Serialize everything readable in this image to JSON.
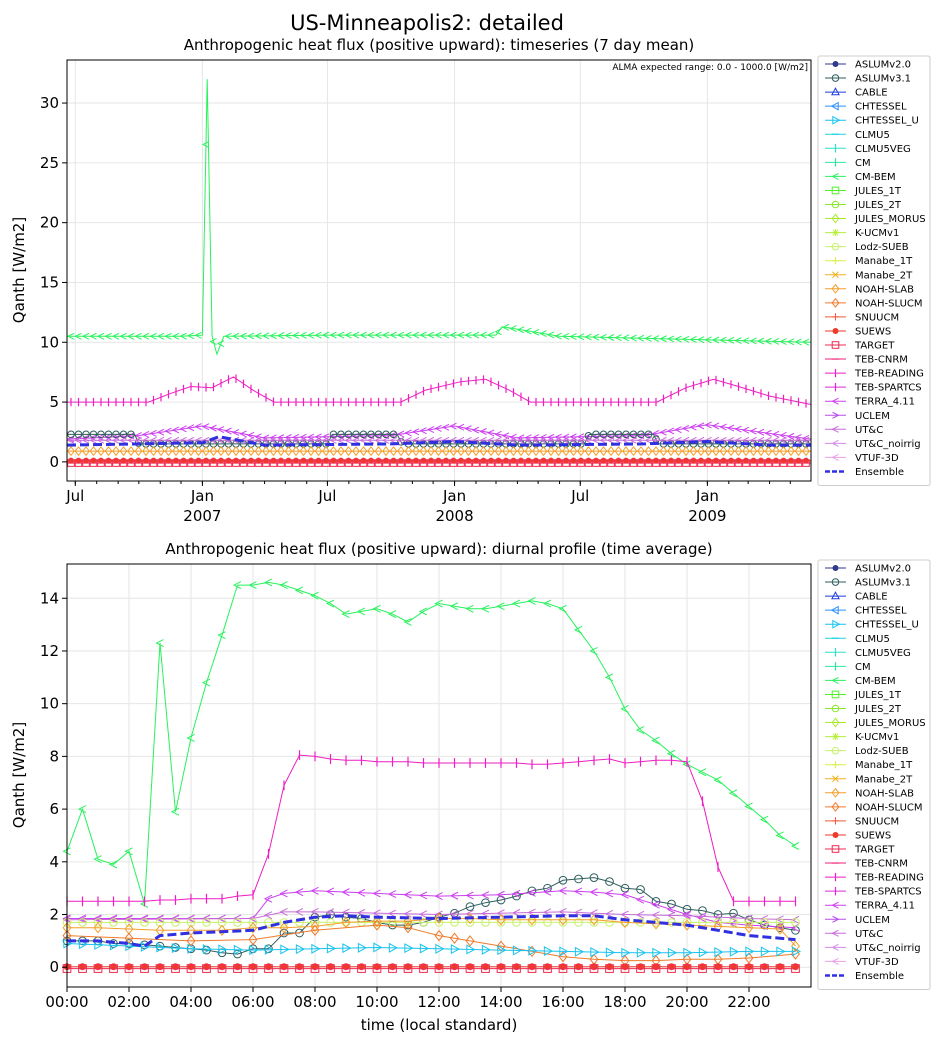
{
  "figure": {
    "title": "US-Minneapolis2: detailed"
  },
  "legend_labels": [
    "ASLUMv2.0",
    "ASLUMv3.1",
    "CABLE",
    "CHTESSEL",
    "CHTESSEL_U",
    "CLMU5",
    "CLMU5VEG",
    "CM",
    "CM-BEM",
    "JULES_1T",
    "JULES_2T",
    "JULES_MORUS",
    "K-UCMv1",
    "Lodz-SUEB",
    "Manabe_1T",
    "Manabe_2T",
    "NOAH-SLAB",
    "NOAH-SLUCM",
    "SNUUCM",
    "SUEWS",
    "TARGET",
    "TEB-CNRM",
    "TEB-READING",
    "TEB-SPARTCS",
    "TERRA_4.11",
    "UCLEM",
    "UT&C",
    "UT&C_noirrig",
    "VTUF-3D",
    "Ensemble"
  ],
  "series_colors": [
    "#2b3a8c",
    "#2f5e5e",
    "#1f3fdb",
    "#2f8fff",
    "#19c3ef",
    "#1fd2e6",
    "#2de0c8",
    "#2ee6a0",
    "#27f25c",
    "#54ee2a",
    "#87ea2a",
    "#aaea30",
    "#b6ef3c",
    "#c7f06a",
    "#dbef50",
    "#f0b020",
    "#f59e2a",
    "#f07a2a",
    "#f05a3a",
    "#ee3a2a",
    "#f02a50",
    "#f0207a",
    "#ee1ec2",
    "#dd28d6",
    "#cc3df0",
    "#b84ef0",
    "#c86ad8",
    "#d48ce8",
    "#e8a0e8",
    "#3030e0"
  ],
  "chart_data": [
    {
      "type": "line",
      "title": "Anthropogenic heat flux (positive upward): timeseries (7 day mean)",
      "ylabel": "Qanth [W/m2]",
      "xlabel": "",
      "annotation": "ALMA expected range: 0.0 - 1000.0 [W/m2]",
      "x_range": [
        "2006-06-19",
        "2009-05-31"
      ],
      "ylim": [
        -1.6,
        33.6
      ],
      "yticks": [
        0,
        5,
        10,
        15,
        20,
        25,
        30
      ],
      "xticks": [
        {
          "date": "2006-07-01",
          "label": "Jul",
          "sublabel": ""
        },
        {
          "date": "2007-01-01",
          "label": "Jan",
          "sublabel": "2007"
        },
        {
          "date": "2007-07-01",
          "label": "Jul",
          "sublabel": ""
        },
        {
          "date": "2008-01-01",
          "label": "Jan",
          "sublabel": "2008"
        },
        {
          "date": "2008-07-01",
          "label": "Jul",
          "sublabel": ""
        },
        {
          "date": "2009-01-01",
          "label": "Jan",
          "sublabel": "2009"
        }
      ],
      "grid": true,
      "legend_position": "right-outside",
      "series": [
        {
          "name": "CM-BEM",
          "x": [
            "2006-06-19",
            "2006-12-01",
            "2007-01-01",
            "2007-01-08",
            "2007-01-15",
            "2007-01-22",
            "2007-02-01",
            "2007-07-01",
            "2008-03-01",
            "2008-03-10",
            "2008-06-01",
            "2009-05-31"
          ],
          "y": [
            10.5,
            10.5,
            10.6,
            32.0,
            10.5,
            9.0,
            10.5,
            10.6,
            10.6,
            11.3,
            10.5,
            10.0
          ]
        },
        {
          "name": "TEB-READING",
          "x": [
            "2006-06-19",
            "2006-10-15",
            "2006-11-15",
            "2006-12-15",
            "2007-01-15",
            "2007-02-15",
            "2007-03-15",
            "2007-04-15",
            "2007-10-15",
            "2007-11-20",
            "2008-01-10",
            "2008-02-15",
            "2008-03-20",
            "2008-04-20",
            "2008-10-20",
            "2008-12-01",
            "2009-01-10",
            "2009-02-15",
            "2009-04-01",
            "2009-05-31"
          ],
          "y": [
            5.0,
            5.0,
            5.7,
            6.3,
            6.2,
            7.1,
            6.0,
            5.0,
            5.0,
            6.0,
            6.7,
            6.9,
            6.0,
            5.0,
            5.0,
            6.2,
            6.9,
            6.3,
            5.5,
            4.8
          ]
        },
        {
          "name": "TERRA_4.11",
          "x": [
            "2006-06-19",
            "2006-10-01",
            "2007-01-01",
            "2007-04-01",
            "2007-10-01",
            "2008-01-01",
            "2008-04-01",
            "2008-10-01",
            "2009-01-01",
            "2009-05-31"
          ],
          "y": [
            1.9,
            2.2,
            3.0,
            2.0,
            2.2,
            3.0,
            2.0,
            2.2,
            3.1,
            1.9
          ]
        },
        {
          "name": "ASLUMv3.1",
          "x": [
            "2006-06-19",
            "2006-09-25",
            "2006-10-01",
            "2007-07-01",
            "2007-07-08",
            "2007-10-10",
            "2007-10-17",
            "2008-07-07",
            "2008-07-14",
            "2008-10-15",
            "2008-10-22",
            "2009-05-31"
          ],
          "y": [
            2.3,
            2.3,
            1.5,
            1.5,
            2.3,
            2.3,
            1.5,
            1.5,
            2.3,
            2.3,
            1.5,
            1.5
          ]
        },
        {
          "name": "UT&C",
          "x": [
            "2006-06-19",
            "2009-05-31"
          ],
          "y": [
            1.8,
            1.8
          ]
        },
        {
          "name": "NOAH-SLAB",
          "x": [
            "2006-06-19",
            "2009-05-31"
          ],
          "y": [
            0.9,
            0.9
          ]
        },
        {
          "name": "SUEWS",
          "x": [
            "2006-06-19",
            "2009-05-31"
          ],
          "y": [
            0.1,
            0.1
          ]
        },
        {
          "name": "TARGET",
          "x": [
            "2006-06-19",
            "2009-05-31"
          ],
          "y": [
            -0.1,
            -0.1
          ]
        },
        {
          "name": "Ensemble",
          "x": [
            "2006-06-19",
            "2006-10-01",
            "2007-01-01",
            "2007-01-25",
            "2007-04-01",
            "2007-10-01",
            "2008-01-01",
            "2008-04-01",
            "2008-10-01",
            "2009-01-01",
            "2009-04-01",
            "2009-05-31"
          ],
          "y": [
            1.4,
            1.5,
            1.6,
            2.1,
            1.4,
            1.5,
            1.7,
            1.4,
            1.5,
            1.7,
            1.4,
            1.4
          ]
        }
      ]
    },
    {
      "type": "line",
      "title": "Anthropogenic heat flux (positive upward): diurnal profile (time average)",
      "ylabel": "Qanth [W/m2]",
      "xlabel": "time (local standard)",
      "xlim": [
        0,
        24
      ],
      "ylim": [
        -0.75,
        15.3
      ],
      "yticks": [
        0,
        2,
        4,
        6,
        8,
        10,
        12,
        14
      ],
      "xticks": [
        0,
        2,
        4,
        6,
        8,
        10,
        12,
        14,
        16,
        18,
        20,
        22
      ],
      "xtick_labels": [
        "00:00",
        "02:00",
        "04:00",
        "06:00",
        "08:00",
        "10:00",
        "12:00",
        "14:00",
        "16:00",
        "18:00",
        "20:00",
        "22:00"
      ],
      "grid": true,
      "legend_position": "right-outside",
      "series": [
        {
          "name": "CM-BEM",
          "x": [
            0,
            0.5,
            1,
            1.5,
            2,
            2.5,
            3,
            3.5,
            4,
            4.5,
            5,
            5.5,
            6,
            6.5,
            7,
            7.5,
            8,
            8.5,
            9,
            9.5,
            10,
            10.5,
            11,
            11.5,
            12,
            12.5,
            13,
            13.5,
            14,
            14.5,
            15,
            15.5,
            16,
            16.5,
            17,
            17.5,
            18,
            18.5,
            19,
            19.5,
            20,
            20.5,
            21,
            21.5,
            22,
            22.5,
            23,
            23.5
          ],
          "y": [
            4.4,
            6.0,
            4.1,
            3.9,
            4.4,
            2.4,
            12.3,
            5.9,
            8.7,
            10.8,
            12.6,
            14.5,
            14.5,
            14.6,
            14.5,
            14.3,
            14.1,
            13.8,
            13.4,
            13.5,
            13.6,
            13.4,
            13.1,
            13.5,
            13.8,
            13.7,
            13.6,
            13.6,
            13.7,
            13.8,
            13.9,
            13.8,
            13.6,
            12.8,
            12.0,
            11.0,
            9.8,
            9.0,
            8.6,
            8.1,
            7.7,
            7.4,
            7.1,
            6.6,
            6.1,
            5.6,
            5.0,
            4.6
          ]
        },
        {
          "name": "TEB-READING",
          "x": [
            0,
            0.5,
            1,
            1.5,
            2,
            2.5,
            3,
            3.5,
            4,
            4.5,
            5,
            5.5,
            6,
            6.5,
            7,
            7.5,
            8,
            8.5,
            9,
            9.5,
            10,
            10.5,
            11,
            11.5,
            12,
            12.5,
            13,
            13.5,
            14,
            14.5,
            15,
            15.5,
            16,
            16.5,
            17,
            17.5,
            18,
            18.5,
            19,
            19.5,
            20,
            20.5,
            21,
            21.5,
            22,
            22.5,
            23,
            23.5
          ],
          "y": [
            2.5,
            2.5,
            2.5,
            2.5,
            2.5,
            2.5,
            2.55,
            2.55,
            2.6,
            2.6,
            2.6,
            2.7,
            2.75,
            4.3,
            6.9,
            8.05,
            8.0,
            7.9,
            7.85,
            7.85,
            7.8,
            7.8,
            7.8,
            7.75,
            7.75,
            7.75,
            7.75,
            7.75,
            7.75,
            7.75,
            7.7,
            7.7,
            7.75,
            7.8,
            7.85,
            7.9,
            7.75,
            7.8,
            7.85,
            7.85,
            7.8,
            6.3,
            3.8,
            2.5,
            2.5,
            2.5,
            2.5,
            2.5
          ]
        },
        {
          "name": "ASLUMv3.1",
          "x": [
            0,
            0.5,
            1,
            1.5,
            2,
            2.5,
            3,
            3.5,
            4,
            4.5,
            5,
            5.5,
            6,
            6.5,
            7,
            7.5,
            8,
            8.5,
            9,
            9.5,
            10,
            10.5,
            11,
            11.5,
            12,
            12.5,
            13,
            13.5,
            14,
            14.5,
            15,
            15.5,
            16,
            16.5,
            17,
            17.5,
            18,
            18.5,
            19,
            19.5,
            20,
            20.5,
            21,
            21.5,
            22,
            22.5,
            23,
            23.5
          ],
          "y": [
            1.0,
            1.0,
            1.0,
            0.9,
            0.9,
            0.85,
            0.8,
            0.75,
            0.7,
            0.65,
            0.55,
            0.5,
            0.7,
            0.7,
            1.3,
            1.3,
            1.9,
            2.0,
            1.9,
            1.85,
            1.7,
            1.6,
            1.6,
            1.7,
            1.9,
            2.05,
            2.3,
            2.45,
            2.55,
            2.7,
            2.9,
            3.0,
            3.3,
            3.35,
            3.4,
            3.25,
            3.0,
            2.95,
            2.5,
            2.4,
            2.2,
            2.15,
            2.0,
            2.05,
            1.8,
            1.6,
            1.5,
            1.4
          ]
        },
        {
          "name": "TERRA_4.11",
          "x": [
            0,
            2,
            4,
            6,
            6.5,
            7,
            8,
            10,
            12,
            14,
            16,
            17,
            18,
            20,
            21,
            22,
            23.5
          ],
          "y": [
            1.85,
            1.85,
            1.85,
            1.85,
            2.6,
            2.8,
            2.9,
            2.8,
            2.7,
            2.75,
            2.9,
            2.85,
            2.75,
            2.0,
            1.7,
            1.6,
            1.5
          ]
        },
        {
          "name": "UT&C",
          "x": [
            0,
            6,
            7,
            8,
            12,
            16,
            18,
            20,
            22,
            23.5
          ],
          "y": [
            1.8,
            1.85,
            2.1,
            2.1,
            2.0,
            2.1,
            2.0,
            1.95,
            1.85,
            1.8
          ]
        },
        {
          "name": "Lodz-SUEB",
          "x": [
            0,
            6,
            8,
            12,
            16,
            18,
            20,
            23.5
          ],
          "y": [
            1.7,
            1.7,
            1.7,
            1.7,
            1.7,
            1.7,
            1.7,
            1.7
          ]
        },
        {
          "name": "NOAH-SLAB",
          "x": [
            0,
            1,
            2,
            3,
            4,
            5,
            6,
            7,
            8,
            9,
            10,
            11,
            12,
            13,
            14,
            15,
            16,
            17,
            18,
            19,
            20,
            21,
            22,
            23,
            23.5
          ],
          "y": [
            1.5,
            1.5,
            1.45,
            1.4,
            1.4,
            1.4,
            1.5,
            1.5,
            1.55,
            1.7,
            1.75,
            1.75,
            1.85,
            1.85,
            1.8,
            1.8,
            1.8,
            1.8,
            1.7,
            1.65,
            1.6,
            1.55,
            1.5,
            1.45,
            0.8
          ]
        },
        {
          "name": "NOAH-SLUCM",
          "x": [
            0,
            2,
            4,
            6,
            8,
            10,
            11,
            12,
            12.5,
            13,
            14,
            15,
            16,
            17,
            18,
            19,
            20,
            21,
            22,
            23.5
          ],
          "y": [
            1.2,
            1.1,
            1.0,
            1.05,
            1.4,
            1.6,
            1.5,
            1.2,
            1.1,
            1.0,
            0.8,
            0.6,
            0.4,
            0.3,
            0.25,
            0.25,
            0.3,
            0.3,
            0.35,
            0.5
          ]
        },
        {
          "name": "CHTESSEL_U",
          "x": [
            0,
            2,
            4,
            6,
            8,
            10,
            12,
            14,
            16,
            18,
            20,
            22,
            23.5
          ],
          "y": [
            0.9,
            0.8,
            0.7,
            0.65,
            0.7,
            0.75,
            0.7,
            0.65,
            0.6,
            0.55,
            0.55,
            0.6,
            0.6
          ]
        },
        {
          "name": "SUEWS",
          "x": [
            0,
            2,
            4,
            6,
            8,
            10,
            12,
            14,
            16,
            18,
            20,
            22,
            23.5
          ],
          "y": [
            0.02,
            0.02,
            0.02,
            0.02,
            0.02,
            0.02,
            0.02,
            0.02,
            0.02,
            0.02,
            0.02,
            0.02,
            0.02
          ]
        },
        {
          "name": "TARGET",
          "x": [
            0,
            4,
            8,
            12,
            16,
            20,
            23.5
          ],
          "y": [
            -0.05,
            -0.05,
            -0.05,
            -0.05,
            -0.05,
            -0.05,
            -0.05
          ]
        },
        {
          "name": "Ensemble",
          "x": [
            0,
            1,
            2,
            2.5,
            3,
            4,
            5,
            6,
            7,
            8,
            9,
            10,
            12,
            14,
            16,
            17,
            18,
            19,
            20,
            21,
            22,
            23,
            23.5
          ],
          "y": [
            1.0,
            1.0,
            0.9,
            0.8,
            1.2,
            1.3,
            1.35,
            1.4,
            1.7,
            1.9,
            1.95,
            1.9,
            1.85,
            1.9,
            1.95,
            1.95,
            1.8,
            1.7,
            1.6,
            1.4,
            1.2,
            1.1,
            1.05
          ]
        }
      ]
    }
  ]
}
